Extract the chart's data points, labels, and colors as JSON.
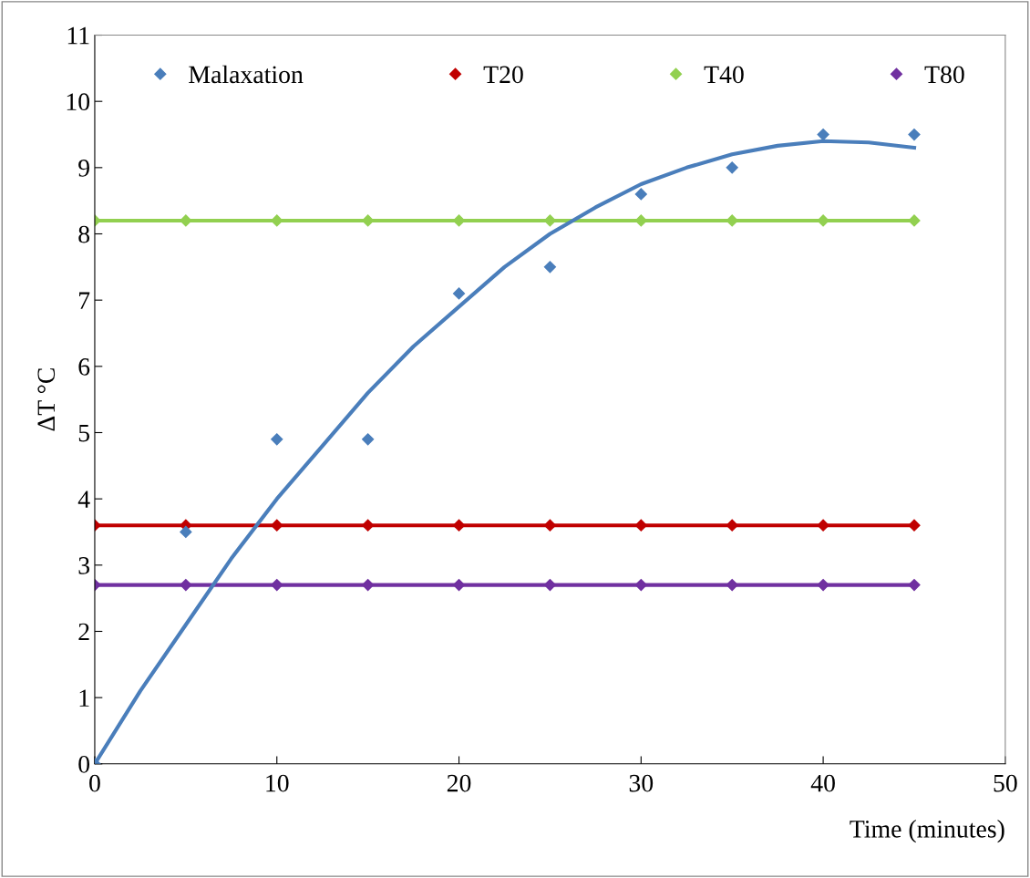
{
  "chart_data": {
    "type": "scatter",
    "xlabel": "Time (minutes)",
    "ylabel": "ΔT °C",
    "x": [
      0,
      5,
      10,
      15,
      20,
      25,
      30,
      35,
      40,
      45
    ],
    "series": [
      {
        "name": "Malaxation",
        "color": "#4a7ebb",
        "values": [
          0,
          3.5,
          4.9,
          4.9,
          7.1,
          7.5,
          8.6,
          9.0,
          9.5,
          9.5
        ]
      },
      {
        "name": "T20",
        "color": "#c00000",
        "type": "line",
        "values": [
          3.6,
          3.6,
          3.6,
          3.6,
          3.6,
          3.6,
          3.6,
          3.6,
          3.6,
          3.6
        ]
      },
      {
        "name": "T40",
        "color": "#92d050",
        "type": "line",
        "values": [
          8.2,
          8.2,
          8.2,
          8.2,
          8.2,
          8.2,
          8.2,
          8.2,
          8.2,
          8.2
        ]
      },
      {
        "name": "T80",
        "color": "#7030a0",
        "type": "line",
        "values": [
          2.7,
          2.7,
          2.7,
          2.7,
          2.7,
          2.7,
          2.7,
          2.7,
          2.7,
          2.7
        ]
      },
      {
        "color": "#4a7ebb",
        "type": "line",
        "marker": "none",
        "x": [
          0,
          2.5,
          5,
          7.5,
          10,
          12.5,
          15,
          17.5,
          20,
          22.5,
          25,
          27.5,
          30,
          32.5,
          35,
          37.5,
          40,
          42.5,
          45
        ],
        "values": [
          0,
          1.1,
          2.1,
          3.1,
          4.0,
          4.8,
          5.6,
          6.3,
          6.9,
          7.5,
          8.0,
          8.4,
          8.75,
          9.0,
          9.2,
          9.33,
          9.4,
          9.38,
          9.3
        ]
      }
    ],
    "xlim": [
      0,
      50
    ],
    "xticks": [
      0,
      10,
      20,
      30,
      40,
      50
    ],
    "ylim": [
      0,
      11
    ],
    "yticks": [
      0,
      1,
      2,
      3,
      4,
      5,
      6,
      7,
      8,
      9,
      10,
      11
    ],
    "grid": false,
    "legend": "top",
    "marker": "diamond",
    "line_style": "solid"
  }
}
